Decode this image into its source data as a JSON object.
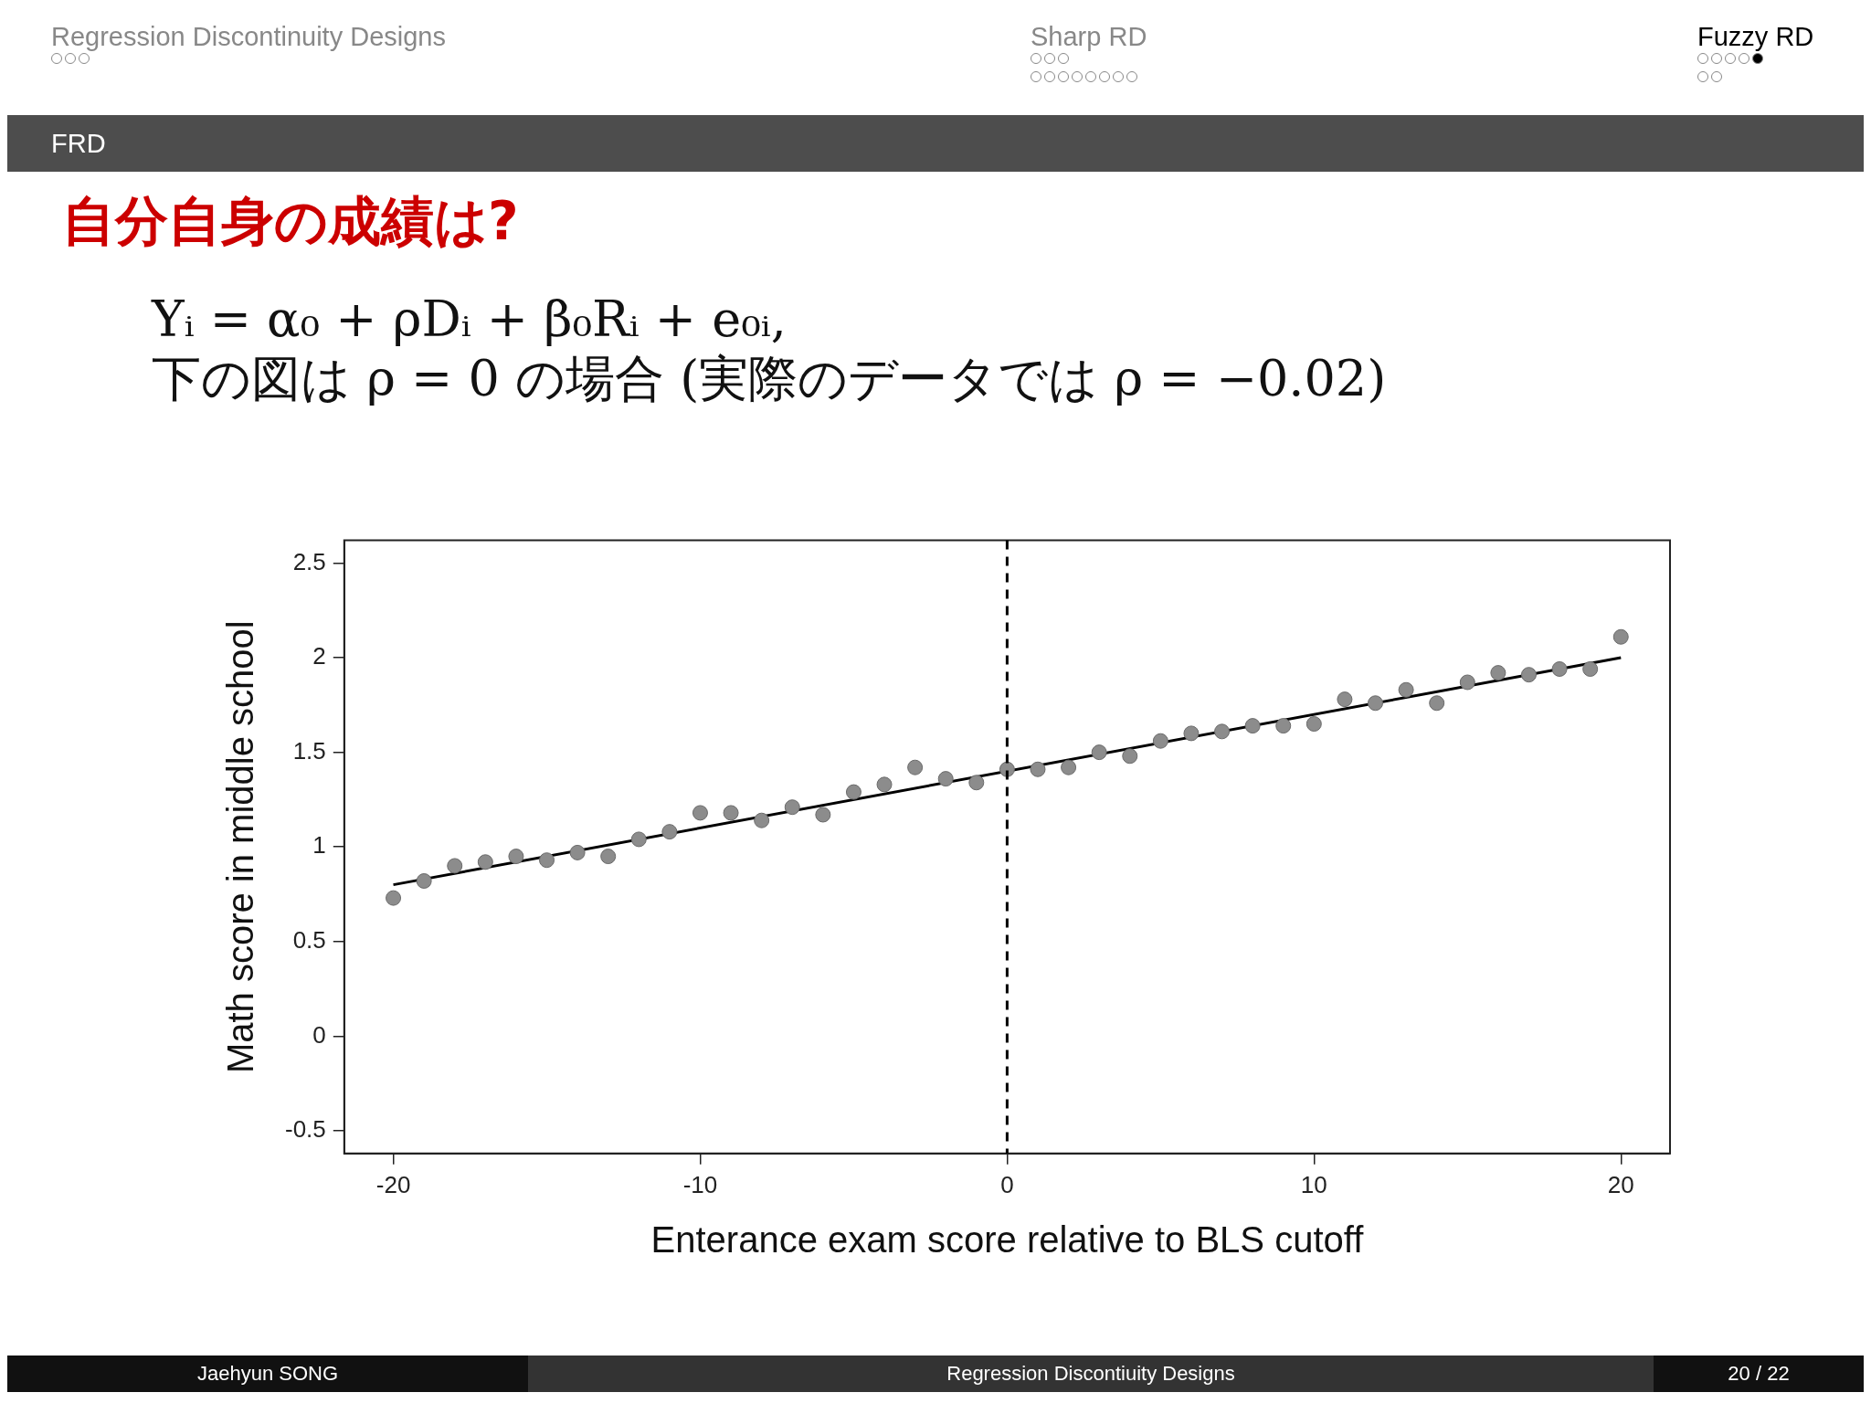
{
  "chart_data": {
    "type": "scatter",
    "title": "自分自身の成績は?",
    "xlabel": "Enterance exam score relative to BLS cutoff",
    "ylabel": "Math score in middle school",
    "x": [
      -20,
      -19,
      -18,
      -17,
      -16,
      -15,
      -14,
      -13,
      -12,
      -11,
      -10,
      -9,
      -8,
      -7,
      -6,
      -5,
      -4,
      -3,
      -2,
      -1,
      0,
      1,
      2,
      3,
      4,
      5,
      6,
      7,
      8,
      9,
      10,
      11,
      12,
      13,
      14,
      15,
      16,
      17,
      18,
      19,
      20
    ],
    "series": [
      {
        "color": "#8c8c8c",
        "marker": "circle",
        "values": [
          0.73,
          0.82,
          0.9,
          0.92,
          0.95,
          0.93,
          0.97,
          0.95,
          1.04,
          1.08,
          1.18,
          1.18,
          1.14,
          1.21,
          1.17,
          1.29,
          1.33,
          1.42,
          1.36,
          1.34,
          1.41,
          1.41,
          1.42,
          1.5,
          1.48,
          1.56,
          1.6,
          1.61,
          1.64,
          1.64,
          1.65,
          1.78,
          1.76,
          1.83,
          1.76,
          1.87,
          1.92,
          1.91,
          1.94,
          1.94,
          2.11
        ]
      },
      {
        "type": "line",
        "color": "#000000",
        "line_style": "solid",
        "marker": "none",
        "x": [
          -20,
          20
        ],
        "values": [
          0.8,
          2.0
        ]
      }
    ],
    "xlim": [
      -21.6,
      21.6
    ],
    "ylim": [
      -0.62,
      2.62
    ],
    "xticks": [
      -20,
      -10,
      0,
      10,
      20
    ],
    "yticks": [
      -0.5,
      0,
      0.5,
      1,
      1.5,
      2,
      2.5
    ],
    "ref_lines": [
      {
        "axis": "x",
        "value": 0,
        "color": "#000000",
        "line_style": "dashed"
      }
    ],
    "grid": false,
    "legend": false,
    "annotations": [
      "Regression Discontinuity Designs",
      "Sharp RD",
      "Fuzzy RD",
      "FRD",
      "Yᵢ = α₀ + ρDᵢ + β₀Rᵢ + e₀ᵢ,",
      "下の図は ρ = 0 の場合 (実際のデータでは ρ = −0.02)",
      "Jaehyun SONG",
      "Regression Discontiuity Designs",
      "20 / 22"
    ]
  }
}
